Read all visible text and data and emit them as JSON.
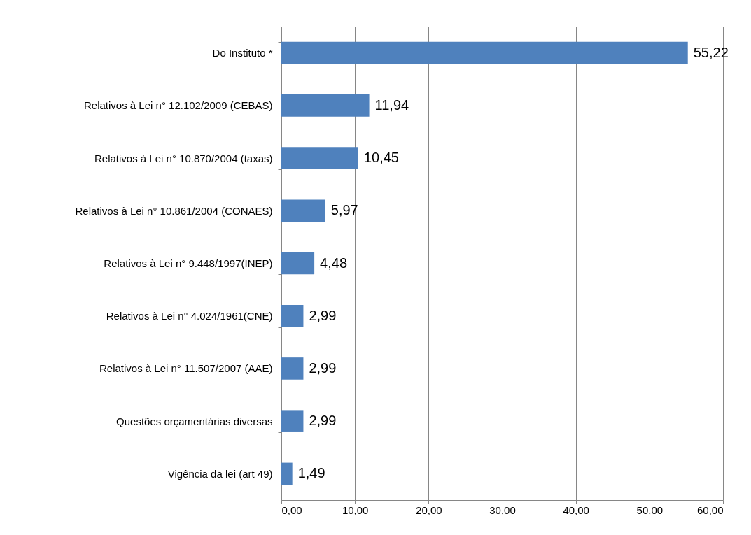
{
  "chart_data": {
    "type": "bar",
    "orientation": "horizontal",
    "categories": [
      "Do Instituto *",
      "Relativos à Lei n° 12.102/2009 (CEBAS)",
      "Relativos à Lei n° 10.870/2004 (taxas)",
      "Relativos à Lei n° 10.861/2004 (CONAES)",
      "Relativos à Lei n° 9.448/1997(INEP)",
      "Relativos à Lei  n° 4.024/1961(CNE)",
      "Relativos à Lei n° 11.507/2007 (AAE)",
      "Questões orçamentárias diversas",
      "Vigência da lei (art 49)"
    ],
    "values": [
      55.22,
      11.94,
      10.45,
      5.97,
      4.48,
      2.99,
      2.99,
      2.99,
      1.49
    ],
    "value_labels": [
      "55,22",
      "11,94",
      "10,45",
      "5,97",
      "4,48",
      "2,99",
      "2,99",
      "2,99",
      "1,49"
    ],
    "color": "#4f81bd",
    "xlim": [
      0,
      60
    ],
    "xticks": [
      {
        "value": 0,
        "label": "0,00"
      },
      {
        "value": 10,
        "label": "10,00"
      },
      {
        "value": 20,
        "label": "20,00"
      },
      {
        "value": 30,
        "label": "30,00"
      },
      {
        "value": 40,
        "label": "40,00"
      },
      {
        "value": 50,
        "label": "50,00"
      },
      {
        "value": 60,
        "label": "60,00"
      }
    ],
    "grid": "x"
  }
}
